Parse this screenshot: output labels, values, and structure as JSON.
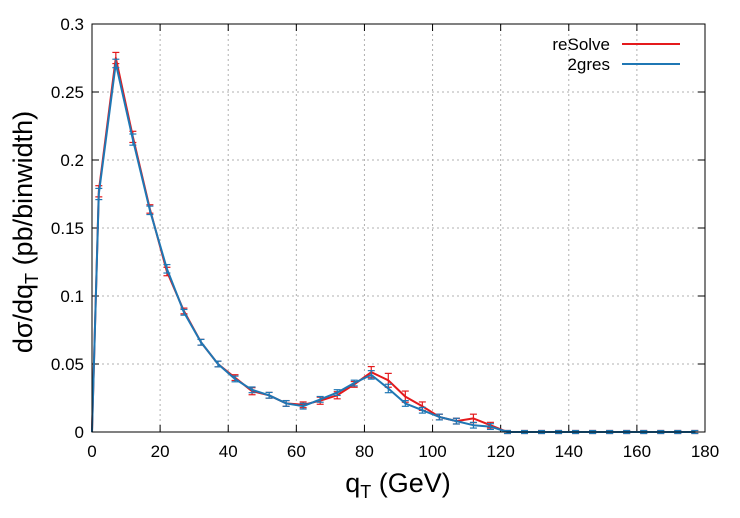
{
  "chart_data": {
    "type": "line",
    "xlabel": {
      "main": "q",
      "sub": "T",
      "rest": " (GeV)"
    },
    "ylabel": {
      "main": "dσ/dq",
      "sub": "T",
      "rest": " (pb/binwidth)"
    },
    "xlim": [
      0,
      180
    ],
    "ylim": [
      0,
      0.3
    ],
    "xticks": [
      0,
      20,
      40,
      60,
      80,
      100,
      120,
      140,
      160,
      180
    ],
    "yticks": [
      0,
      0.05,
      0.1,
      0.15,
      0.2,
      0.25,
      0.3
    ],
    "xtick_labels": [
      "0",
      "20",
      "40",
      "60",
      "80",
      "100",
      "120",
      "140",
      "160",
      "180"
    ],
    "ytick_labels": [
      "0",
      "0.05",
      "0.1",
      "0.15",
      "0.2",
      "0.25",
      "0.3"
    ],
    "grid": true,
    "legend_position": "top-right",
    "series": [
      {
        "name": "reSolve",
        "color": "#e41a1c",
        "x": [
          0,
          2,
          7,
          12,
          17,
          22,
          27,
          32,
          37,
          42,
          47,
          52,
          57,
          62,
          67,
          72,
          77,
          82,
          87,
          92,
          97,
          102,
          107,
          112,
          117,
          122,
          127,
          132,
          137,
          142,
          147,
          152,
          157,
          162,
          167,
          172,
          177
        ],
        "y": [
          0,
          0.177,
          0.275,
          0.217,
          0.164,
          0.118,
          0.089,
          0.066,
          0.05,
          0.04,
          0.03,
          0.027,
          0.021,
          0.02,
          0.023,
          0.027,
          0.035,
          0.044,
          0.038,
          0.026,
          0.019,
          0.011,
          0.008,
          0.01,
          0.005,
          0,
          0,
          0,
          0,
          0,
          0,
          0,
          0,
          0,
          0,
          0,
          0
        ],
        "err": [
          0,
          0.003,
          0.003,
          0.003,
          0.002,
          0.002,
          0.001,
          0.001,
          0.001,
          0.001,
          0.0015,
          0.001,
          0.001,
          0.001,
          0.0015,
          0.0015,
          0.001,
          0.003,
          0.004,
          0.003,
          0.002,
          0.001,
          0.001,
          0.002,
          0.001,
          0,
          0,
          0,
          0,
          0,
          0,
          0,
          0,
          0,
          0,
          0,
          0
        ]
      },
      {
        "name": "2gres",
        "color": "#1f77b4",
        "x": [
          0,
          2,
          7,
          12,
          17,
          22,
          27,
          32,
          37,
          42,
          47,
          52,
          57,
          62,
          67,
          72,
          77,
          82,
          87,
          92,
          97,
          102,
          107,
          112,
          117,
          122,
          127,
          132,
          137,
          142,
          147,
          152,
          157,
          162,
          167,
          172,
          177
        ],
        "y": [
          0,
          0.175,
          0.271,
          0.215,
          0.163,
          0.12,
          0.088,
          0.066,
          0.05,
          0.039,
          0.031,
          0.027,
          0.021,
          0.019,
          0.024,
          0.029,
          0.036,
          0.042,
          0.032,
          0.021,
          0.016,
          0.011,
          0.008,
          0.005,
          0.004,
          0,
          0,
          0,
          0,
          0,
          0,
          0,
          0,
          0,
          0,
          0,
          0
        ],
        "err": [
          0,
          0.003,
          0.002,
          0.003,
          0.002,
          0.002,
          0.001,
          0.001,
          0.001,
          0.001,
          0.001,
          0.001,
          0.001,
          0.001,
          0.001,
          0.001,
          0.001,
          0.002,
          0.002,
          0.001,
          0.001,
          0.001,
          0.001,
          0.001,
          0.001,
          0,
          0,
          0,
          0,
          0,
          0,
          0,
          0,
          0,
          0,
          0,
          0
        ]
      }
    ]
  }
}
